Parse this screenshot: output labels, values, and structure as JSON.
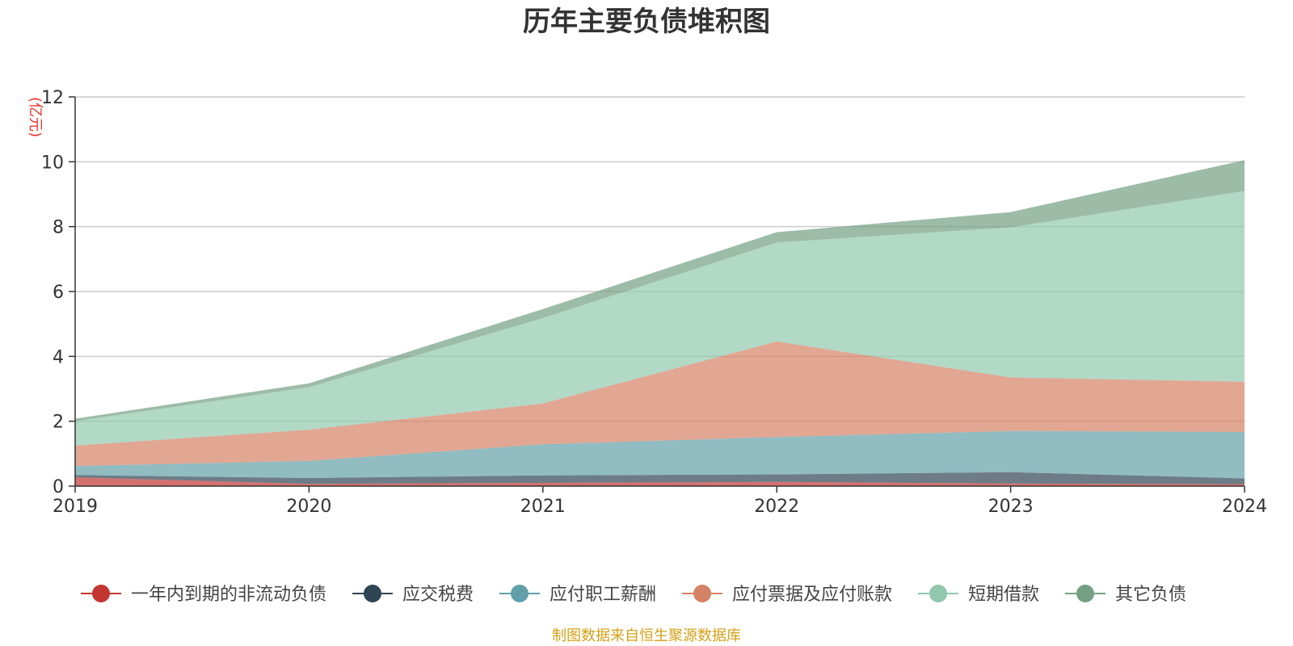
{
  "chart_data": {
    "type": "area",
    "stacked": true,
    "title": "历年主要负债堆积图",
    "unit_label": "(亿元)",
    "x": [
      "2019",
      "2020",
      "2021",
      "2022",
      "2023",
      "2024"
    ],
    "ylim": [
      0,
      12
    ],
    "yticks": [
      "0",
      "2",
      "4",
      "6",
      "8",
      "10",
      "12"
    ],
    "grid": true,
    "legend_position": "bottom",
    "series": [
      {
        "name": "一年内到期的非流动负债",
        "color": "#c23531",
        "values": [
          0.27,
          0.07,
          0.1,
          0.13,
          0.08,
          0.06
        ]
      },
      {
        "name": "应交税费",
        "color": "#2f4554",
        "values": [
          0.07,
          0.18,
          0.23,
          0.23,
          0.35,
          0.18
        ]
      },
      {
        "name": "应付职工薪酬",
        "color": "#61a0a8",
        "values": [
          0.28,
          0.53,
          0.96,
          1.15,
          1.27,
          1.43
        ]
      },
      {
        "name": "应付票据及应付账款",
        "color": "#d48265",
        "values": [
          0.63,
          0.96,
          1.26,
          2.95,
          1.65,
          1.55
        ]
      },
      {
        "name": "短期借款",
        "color": "#91c7ae",
        "values": [
          0.75,
          1.31,
          2.63,
          3.05,
          4.63,
          5.88
        ]
      },
      {
        "name": "其它负债",
        "color": "#749f83",
        "values": [
          0.08,
          0.12,
          0.28,
          0.32,
          0.47,
          0.95
        ]
      }
    ]
  },
  "footer": {
    "source": "制图数据来自恒生聚源数据库"
  }
}
